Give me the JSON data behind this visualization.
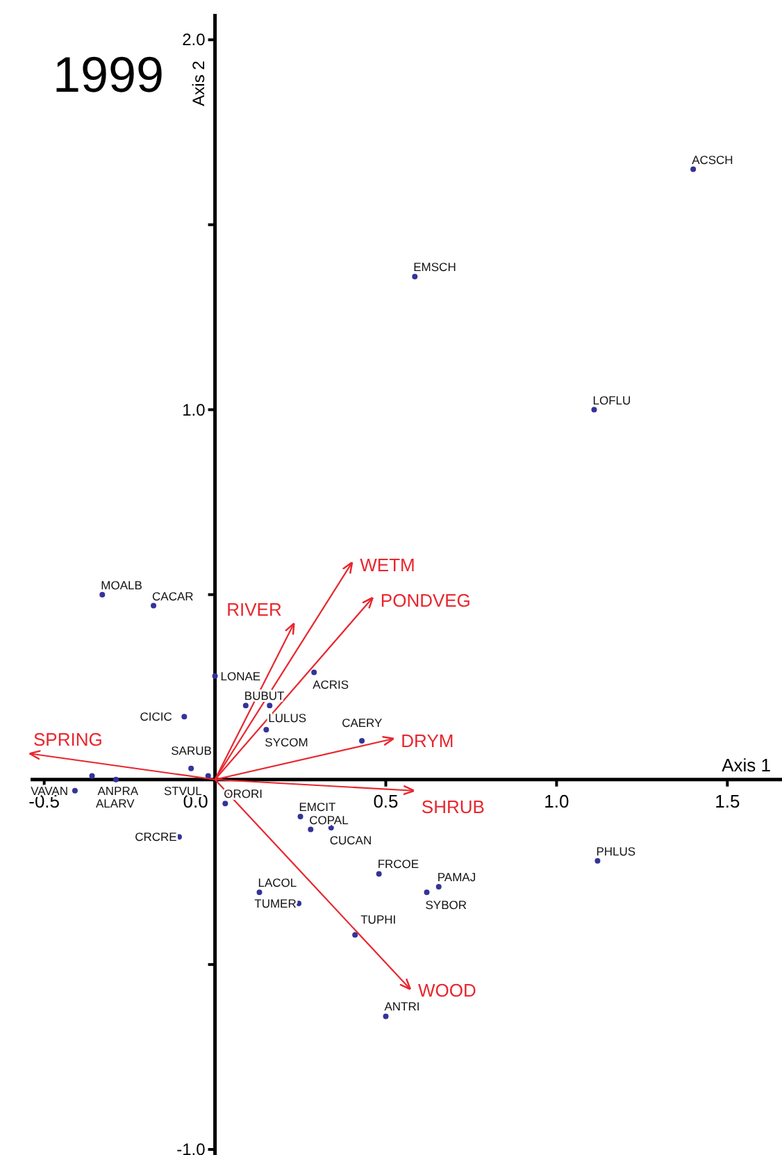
{
  "chart_data": {
    "type": "scatter",
    "title": "1999",
    "xlabel": "Axis 1",
    "ylabel": "Axis 2",
    "xlim": [
      -0.54,
      1.66
    ],
    "ylim": [
      -1.015,
      2.07
    ],
    "xticks": [
      -0.5,
      {
        "value": 0,
        "label": "0.0"
      },
      0.5,
      {
        "value": 1,
        "label": "1.0"
      },
      1.5
    ],
    "yticks": [
      {
        "value": -1,
        "label": "-1.0"
      },
      {
        "value": -0.5,
        "label": null
      },
      {
        "value": 0.5,
        "label": null
      },
      {
        "value": 1,
        "label": "1.0"
      },
      {
        "value": 1.5,
        "label": null
      },
      {
        "value": 2,
        "label": "2.0"
      }
    ],
    "grid": false,
    "marker": "circle",
    "series": [
      {
        "color": "#33339a",
        "x": [
          1.4,
          0.585,
          1.11,
          -0.33,
          -0.18,
          0.0,
          0.29,
          0.09,
          0.16,
          -0.09,
          0.15,
          0.43,
          -0.07,
          -0.02,
          -0.36,
          -0.29,
          -0.41,
          0.03,
          -0.105,
          0.25,
          0.28,
          0.34,
          0.48,
          0.655,
          0.62,
          0.13,
          0.245,
          0.41,
          0.5,
          1.12
        ],
        "values": [
          1.65,
          1.36,
          1.0,
          0.5,
          0.47,
          0.28,
          0.29,
          0.2,
          0.2,
          0.17,
          0.135,
          0.105,
          0.03,
          0.01,
          0.01,
          0.0,
          -0.03,
          -0.065,
          -0.155,
          -0.1,
          -0.135,
          -0.13,
          -0.255,
          -0.29,
          -0.305,
          -0.305,
          -0.335,
          -0.42,
          -0.64,
          -0.22
        ]
      },
      {
        "type": "line",
        "name": "WETM",
        "color": "#e8262e",
        "marker": "none",
        "x": [
          0,
          0.4
        ],
        "values": [
          0,
          0.585
        ]
      },
      {
        "type": "line",
        "name": "PONDVEG",
        "color": "#e8262e",
        "marker": "none",
        "x": [
          0,
          0.46
        ],
        "values": [
          0,
          0.49
        ]
      },
      {
        "type": "line",
        "name": "RIVER",
        "color": "#e8262e",
        "marker": "none",
        "x": [
          0,
          0.23
        ],
        "values": [
          0,
          0.42
        ]
      },
      {
        "type": "line",
        "name": "DRYM",
        "color": "#e8262e",
        "marker": "none",
        "x": [
          0,
          0.52
        ],
        "values": [
          0,
          0.11
        ]
      },
      {
        "type": "line",
        "name": "SHRUB",
        "color": "#e8262e",
        "marker": "none",
        "x": [
          0,
          0.58
        ],
        "values": [
          0,
          -0.03
        ]
      },
      {
        "type": "line",
        "name": "WOOD",
        "color": "#e8262e",
        "marker": "none",
        "x": [
          0,
          0.57
        ],
        "values": [
          0,
          -0.565
        ]
      },
      {
        "type": "line",
        "name": "SPRING",
        "color": "#e8262e",
        "marker": "none",
        "x": [
          0,
          -0.54
        ],
        "values": [
          0,
          0.07
        ]
      }
    ],
    "annotations": [
      {
        "text": "ACSCH",
        "x": 1.4,
        "y": 1.65
      },
      {
        "text": "EMSCH",
        "x": 0.585,
        "y": 1.36
      },
      {
        "text": "LOFLU",
        "x": 1.11,
        "y": 1.0
      },
      {
        "text": "MOALB",
        "x": -0.33,
        "y": 0.5
      },
      {
        "text": "CACAR",
        "x": -0.18,
        "y": 0.47
      },
      {
        "text": "LONAE",
        "x": 0.0,
        "y": 0.28
      },
      {
        "text": "ACRIS",
        "x": 0.29,
        "y": 0.29
      },
      {
        "text": "BUBUT",
        "x": 0.09,
        "y": 0.2
      },
      {
        "text": "LULUS",
        "x": 0.16,
        "y": 0.2
      },
      {
        "text": "CICIC",
        "x": -0.09,
        "y": 0.17
      },
      {
        "text": "SYCOM",
        "x": 0.15,
        "y": 0.135
      },
      {
        "text": "CAERY",
        "x": 0.43,
        "y": 0.105
      },
      {
        "text": "SARUB",
        "x": -0.07,
        "y": 0.03
      },
      {
        "text": "STVUL",
        "x": -0.02,
        "y": 0.01
      },
      {
        "text": "ANPRA",
        "x": -0.36,
        "y": 0.01
      },
      {
        "text": "ALARV",
        "x": -0.29,
        "y": 0.0
      },
      {
        "text": "VAVAN",
        "x": -0.41,
        "y": -0.03
      },
      {
        "text": "ORORI",
        "x": 0.03,
        "y": -0.065
      },
      {
        "text": "CRCRE",
        "x": -0.105,
        "y": -0.155
      },
      {
        "text": "EMCIT",
        "x": 0.25,
        "y": -0.1
      },
      {
        "text": "COPAL",
        "x": 0.28,
        "y": -0.135
      },
      {
        "text": "CUCAN",
        "x": 0.34,
        "y": -0.13
      },
      {
        "text": "FRCOE",
        "x": 0.48,
        "y": -0.255
      },
      {
        "text": "PAMAJ",
        "x": 0.655,
        "y": -0.29
      },
      {
        "text": "SYBOR",
        "x": 0.62,
        "y": -0.305
      },
      {
        "text": "LACOL",
        "x": 0.13,
        "y": -0.305
      },
      {
        "text": "TUMER",
        "x": 0.245,
        "y": -0.335
      },
      {
        "text": "TUPHI",
        "x": 0.41,
        "y": -0.42
      },
      {
        "text": "ANTRI",
        "x": 0.5,
        "y": -0.64
      },
      {
        "text": "PHLUS",
        "x": 1.12,
        "y": -0.22
      }
    ]
  }
}
